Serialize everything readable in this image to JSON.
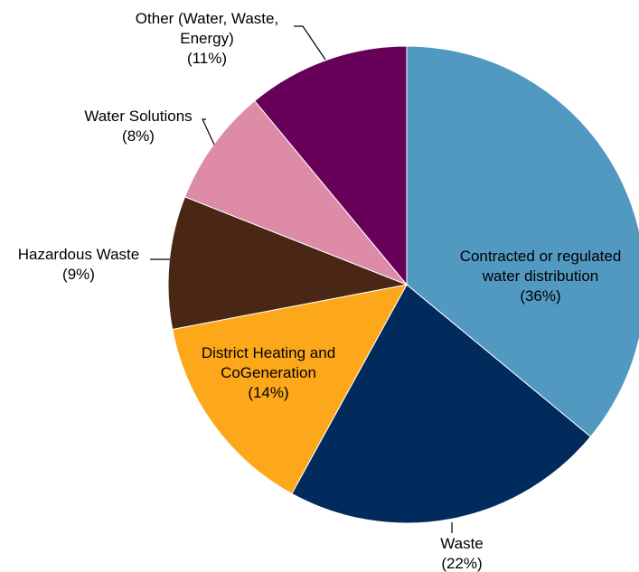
{
  "chart_data": {
    "type": "pie",
    "title": "",
    "slices": [
      {
        "label_lines": [
          "Contracted or regulated",
          "water distribution"
        ],
        "value": 36,
        "value_label": "(36%)",
        "color": "#5299c2"
      },
      {
        "label_lines": [
          "Waste"
        ],
        "value": 22,
        "value_label": "(22%)",
        "color": "#002b5c"
      },
      {
        "label_lines": [
          "District Heating and",
          "CoGeneration"
        ],
        "value": 14,
        "value_label": "(14%)",
        "color": "#fda81a"
      },
      {
        "label_lines": [
          "Hazardous Waste"
        ],
        "value": 9,
        "value_label": "(9%)",
        "color": "#4a2614"
      },
      {
        "label_lines": [
          "Water Solutions"
        ],
        "value": 8,
        "value_label": "(8%)",
        "color": "#dd8ba6"
      },
      {
        "label_lines": [
          "Other (Water, Waste,",
          "Energy)"
        ],
        "value": 11,
        "value_label": "(11%)",
        "color": "#68005a"
      }
    ],
    "start_angle_deg": 0,
    "direction": "clockwise",
    "legend": "none"
  }
}
